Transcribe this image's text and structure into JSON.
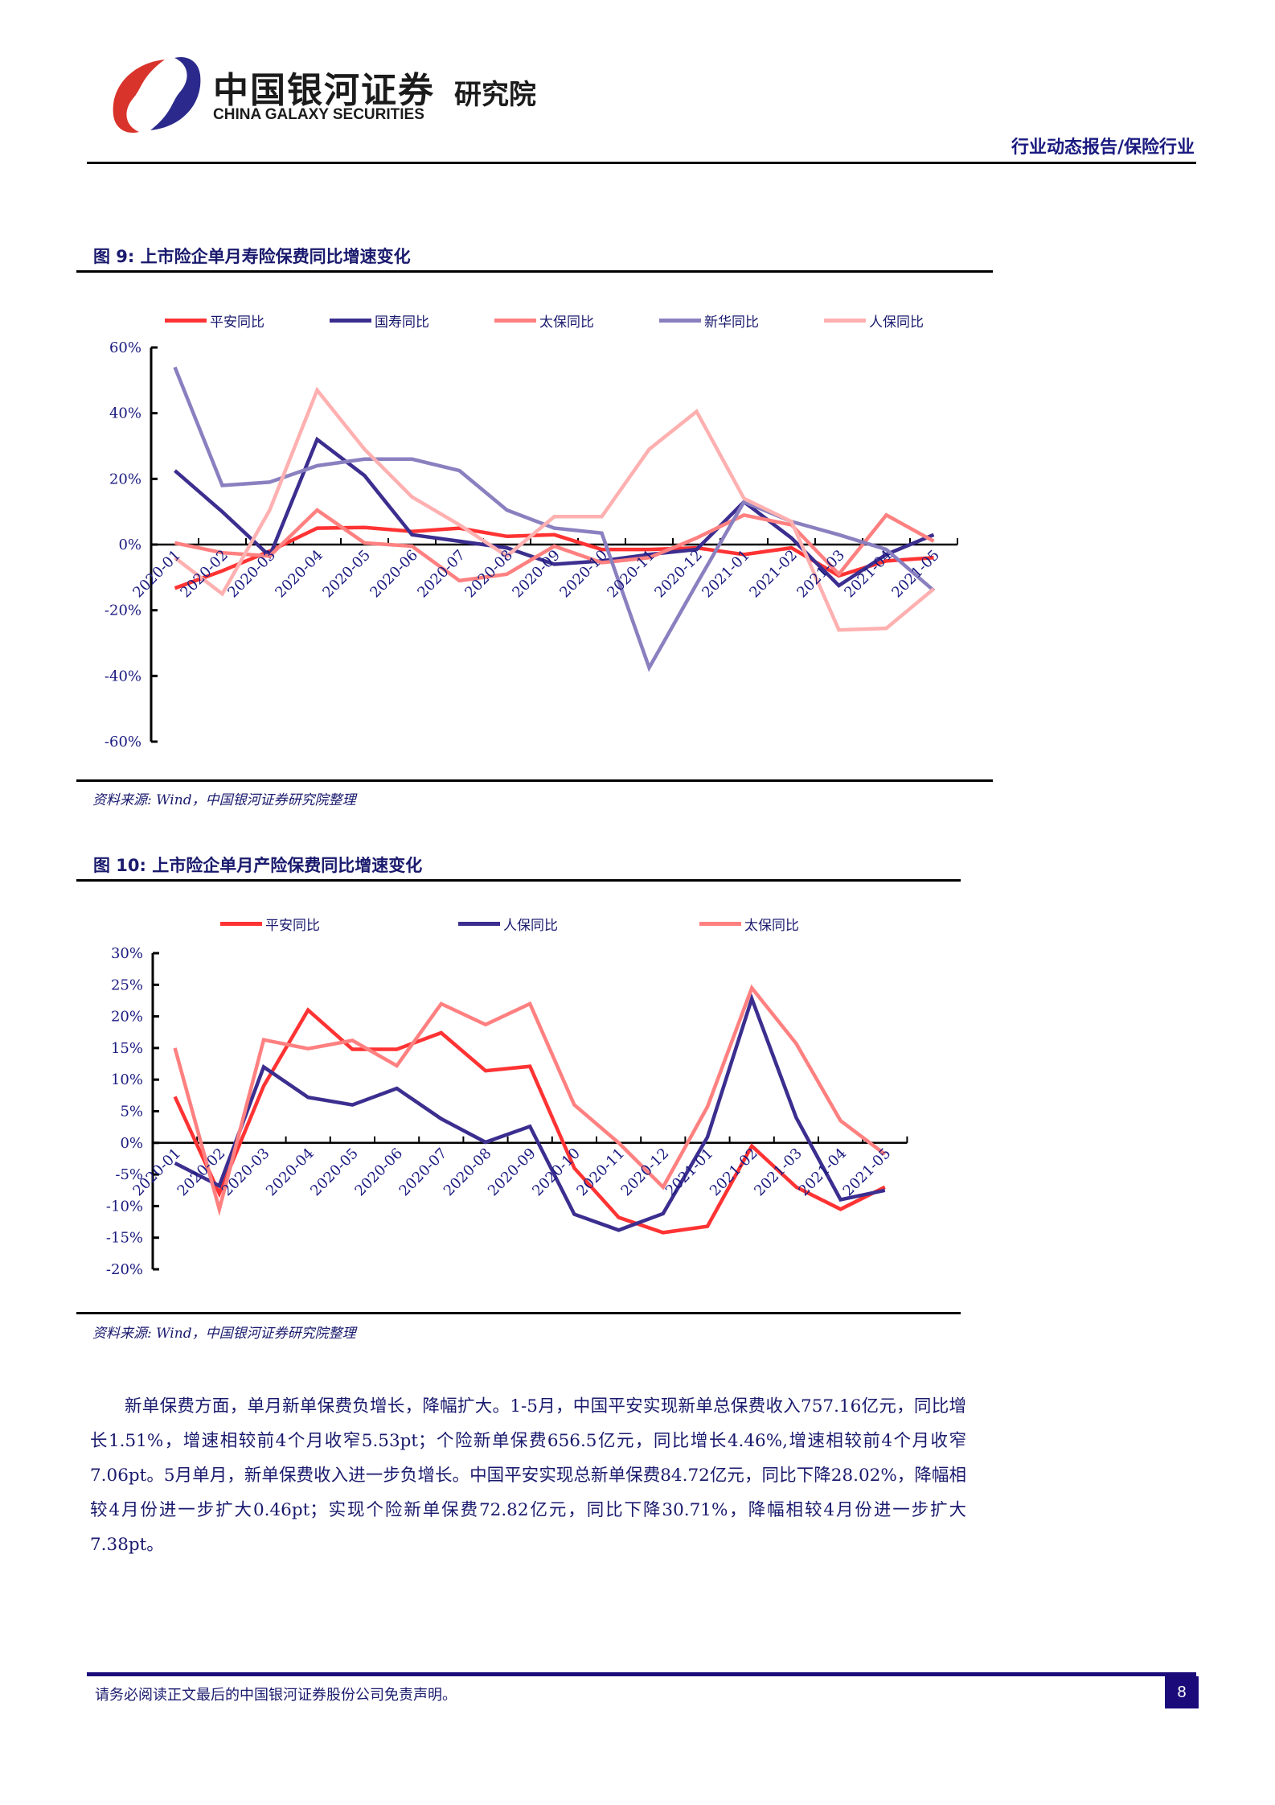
{
  "header": {
    "logo_cn": "中国银河证券",
    "logo_en": "CHINA GALAXY SECURITIES",
    "logo_institute": "研究院",
    "report_type": "行业动态报告/保险行业",
    "brand_colors": {
      "red": "#d9342b",
      "blue": "#2b2a8c"
    }
  },
  "figure9": {
    "title": "图 9:  上市险企单月寿险保费同比增速变化",
    "source": "资料来源: Wind，中国银河证券研究院整理"
  },
  "figure10": {
    "title": "图 10:  上市险企单月产险保费同比增速变化",
    "source": "资料来源: Wind，中国银河证券研究院整理"
  },
  "chart_data": [
    {
      "type": "line",
      "title": "上市险企单月寿险保费同比增速变化",
      "xlabel": "",
      "ylabel": "",
      "ylim": [
        -0.6,
        0.6
      ],
      "yticks": [
        "60%",
        "40%",
        "20%",
        "0%",
        "-20%",
        "-40%",
        "-60%"
      ],
      "ytick_values": [
        0.6,
        0.4,
        0.2,
        0,
        -0.2,
        -0.4,
        -0.6
      ],
      "grid": false,
      "legend_position": "top",
      "categories": [
        "2020-01",
        "2020-02",
        "2020-03",
        "2020-04",
        "2020-05",
        "2020-06",
        "2020-07",
        "2020-08",
        "2020-09",
        "2020-10",
        "2020-11",
        "2020-12",
        "2021-01",
        "2021-02",
        "2021-03",
        "2021-04",
        "2021-05"
      ],
      "series": [
        {
          "name": "平安同比",
          "color": "#ff3333",
          "values": [
            -13.3,
            -8,
            -2,
            5,
            5.2,
            4,
            5,
            2.5,
            3,
            -1.5,
            -1.5,
            -1,
            -3,
            -1,
            -9.5,
            -5,
            -4
          ]
        },
        {
          "name": "国寿同比",
          "color": "#3b2e8f",
          "values": [
            22.5,
            10,
            -3.5,
            32,
            21,
            3,
            1,
            -1,
            -6,
            -5,
            -3,
            -1.5,
            13,
            2,
            -12.5,
            -3,
            3
          ]
        },
        {
          "name": "太保同比",
          "color": "#ff8080",
          "values": [
            0.5,
            -2.5,
            -3.5,
            10.5,
            0.5,
            -0.5,
            -11,
            -9,
            -0.5,
            -5.5,
            -4,
            2,
            9,
            6,
            -9,
            9,
            1
          ]
        },
        {
          "name": "新华同比",
          "color": "#8a80c0",
          "values": [
            54,
            18,
            19,
            24,
            26,
            26,
            22.5,
            10.5,
            5,
            3.5,
            -37.5,
            -12,
            13,
            7,
            3,
            -1.5,
            -14
          ]
        },
        {
          "name": "人保同比",
          "color": "#ffb0b0",
          "values": [
            -4,
            -15,
            10.5,
            47,
            29,
            14.5,
            6,
            -3.5,
            8.5,
            8.5,
            29,
            40.5,
            14,
            7,
            -26,
            -25.5,
            -13.5
          ]
        }
      ]
    },
    {
      "type": "line",
      "title": "上市险企单月产险保费同比增速变化",
      "xlabel": "",
      "ylabel": "",
      "ylim": [
        -0.2,
        0.3
      ],
      "yticks": [
        "30%",
        "25%",
        "20%",
        "15%",
        "10%",
        "5%",
        "0%",
        "-5%",
        "-10%",
        "-15%",
        "-20%"
      ],
      "ytick_values": [
        0.3,
        0.25,
        0.2,
        0.15,
        0.1,
        0.05,
        0,
        -0.05,
        -0.1,
        -0.15,
        -0.2
      ],
      "grid": false,
      "legend_position": "top",
      "categories": [
        "2020-01",
        "2020-02",
        "2020-03",
        "2020-04",
        "2020-05",
        "2020-06",
        "2020-07",
        "2020-08",
        "2020-09",
        "2020-10",
        "2020-11",
        "2020-12",
        "2021-01",
        "2021-02",
        "2021-03",
        "2021-04",
        "2021-05"
      ],
      "series": [
        {
          "name": "平安同比",
          "color": "#ff3333",
          "values": [
            7.3,
            -8,
            9,
            21,
            14.8,
            14.8,
            17.4,
            11.4,
            12.1,
            -4,
            -11.8,
            -14.2,
            -13.2,
            -0.5,
            -7,
            -10.5,
            -7
          ]
        },
        {
          "name": "人保同比",
          "color": "#3b2e8f",
          "values": [
            -3.2,
            -6.8,
            12,
            7.2,
            6,
            8.6,
            3.8,
            0.1,
            2.6,
            -11.3,
            -13.8,
            -11.2,
            0.9,
            22.8,
            4,
            -9,
            -7.5
          ]
        },
        {
          "name": "太保同比",
          "color": "#ff8080",
          "values": [
            15,
            -10.5,
            16.3,
            14.9,
            16.2,
            12.2,
            22,
            18.7,
            22,
            6,
            0,
            -7,
            5.7,
            24.5,
            15.7,
            3.5,
            -1.8
          ]
        }
      ]
    }
  ],
  "body": {
    "paragraph": "新单保费方面，单月新单保费负增长，降幅扩大。1-5月，中国平安实现新单总保费收入757.16亿元，同比增长1.51%，增速相较前4个月收窄5.53pt；个险新单保费656.5亿元，同比增长4.46%,增速相较前4个月收窄7.06pt。5月单月，新单保费收入进一步负增长。中国平安实现总新单保费84.72亿元，同比下降28.02%，降幅相较4月份进一步扩大0.46pt；实现个险新单保费72.82亿元，同比下降30.71%，降幅相较4月份进一步扩大7.38pt。"
  },
  "footer": {
    "disclaimer": "请务必阅读正文最后的中国银河证券股份公司免责声明。",
    "page_number": "8"
  }
}
